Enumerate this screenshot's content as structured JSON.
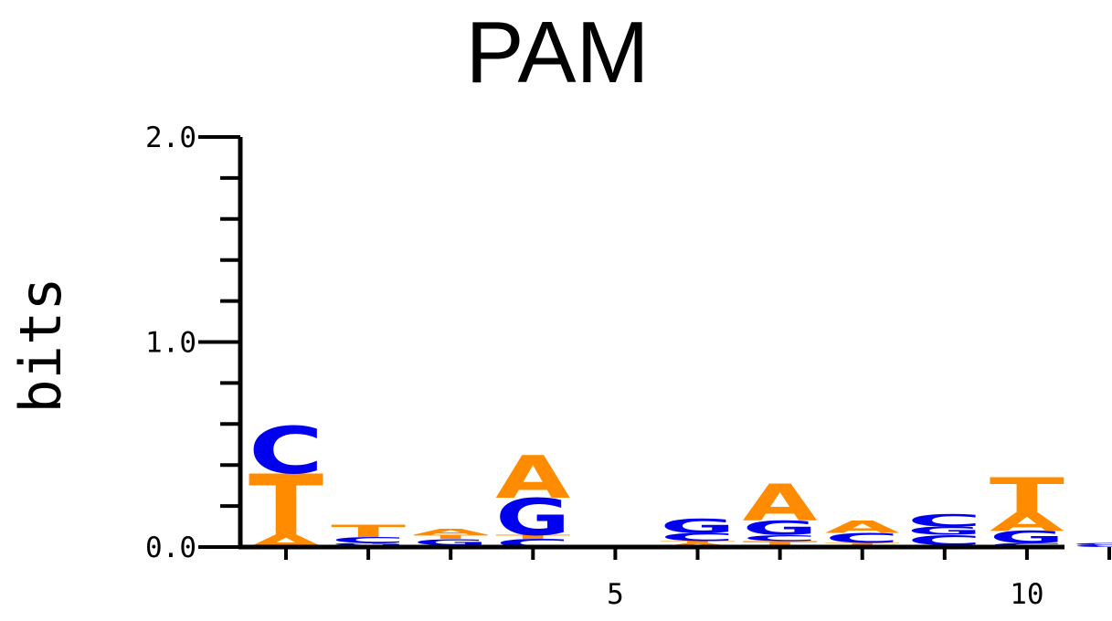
{
  "chart_data": {
    "type": "sequence-logo",
    "title": "PAM",
    "ylabel": "bits",
    "xlabel": "",
    "ylim": [
      0,
      2
    ],
    "y_ticks": [
      "0.0",
      "1.0",
      "2.0"
    ],
    "x_tick_labels": [
      {
        "position": 5,
        "label": "5"
      },
      {
        "position": 10,
        "label": "10"
      }
    ],
    "colors": {
      "A": "#ff8c00",
      "T": "#ff8c00",
      "C": "#0000ee",
      "G": "#0000ee"
    },
    "positions": [
      {
        "position": 1,
        "stack": [
          {
            "letter": "A",
            "bits": 0.06
          },
          {
            "letter": "T",
            "bits": 0.3
          },
          {
            "letter": "C",
            "bits": 0.23
          }
        ]
      },
      {
        "position": 2,
        "stack": [
          {
            "letter": "A",
            "bits": 0.01
          },
          {
            "letter": "G",
            "bits": 0.01
          },
          {
            "letter": "C",
            "bits": 0.03
          },
          {
            "letter": "T",
            "bits": 0.06
          }
        ]
      },
      {
        "position": 3,
        "stack": [
          {
            "letter": "C",
            "bits": 0.01
          },
          {
            "letter": "G",
            "bits": 0.03
          },
          {
            "letter": "T",
            "bits": 0.02
          },
          {
            "letter": "A",
            "bits": 0.03
          }
        ]
      },
      {
        "position": 4,
        "stack": [
          {
            "letter": "C",
            "bits": 0.04
          },
          {
            "letter": "T",
            "bits": 0.02
          },
          {
            "letter": "G",
            "bits": 0.18
          },
          {
            "letter": "A",
            "bits": 0.21
          }
        ]
      },
      {
        "position": 5,
        "stack": [
          {
            "letter": "T",
            "bits": 0.01
          }
        ]
      },
      {
        "position": 6,
        "stack": [
          {
            "letter": "A",
            "bits": 0.02
          },
          {
            "letter": "T",
            "bits": 0.01
          },
          {
            "letter": "C",
            "bits": 0.04
          },
          {
            "letter": "G",
            "bits": 0.07
          }
        ]
      },
      {
        "position": 7,
        "stack": [
          {
            "letter": "T",
            "bits": 0.03
          },
          {
            "letter": "C",
            "bits": 0.03
          },
          {
            "letter": "G",
            "bits": 0.07
          },
          {
            "letter": "A",
            "bits": 0.18
          }
        ]
      },
      {
        "position": 8,
        "stack": [
          {
            "letter": "A",
            "bits": 0.01
          },
          {
            "letter": "T",
            "bits": 0.01
          },
          {
            "letter": "C",
            "bits": 0.05
          },
          {
            "letter": "A",
            "bits": 0.06
          }
        ]
      },
      {
        "position": 9,
        "stack": [
          {
            "letter": "A",
            "bits": 0.01
          },
          {
            "letter": "C",
            "bits": 0.05
          },
          {
            "letter": "G",
            "bits": 0.04
          },
          {
            "letter": "C",
            "bits": 0.06
          }
        ]
      },
      {
        "position": 10,
        "stack": [
          {
            "letter": "C",
            "bits": 0.02
          },
          {
            "letter": "G",
            "bits": 0.06
          },
          {
            "letter": "A",
            "bits": 0.09
          },
          {
            "letter": "T",
            "bits": 0.17
          }
        ]
      },
      {
        "position": 11,
        "stack": [
          {
            "letter": "C",
            "bits": 0.01
          },
          {
            "letter": "G",
            "bits": 0.01
          }
        ]
      }
    ]
  }
}
